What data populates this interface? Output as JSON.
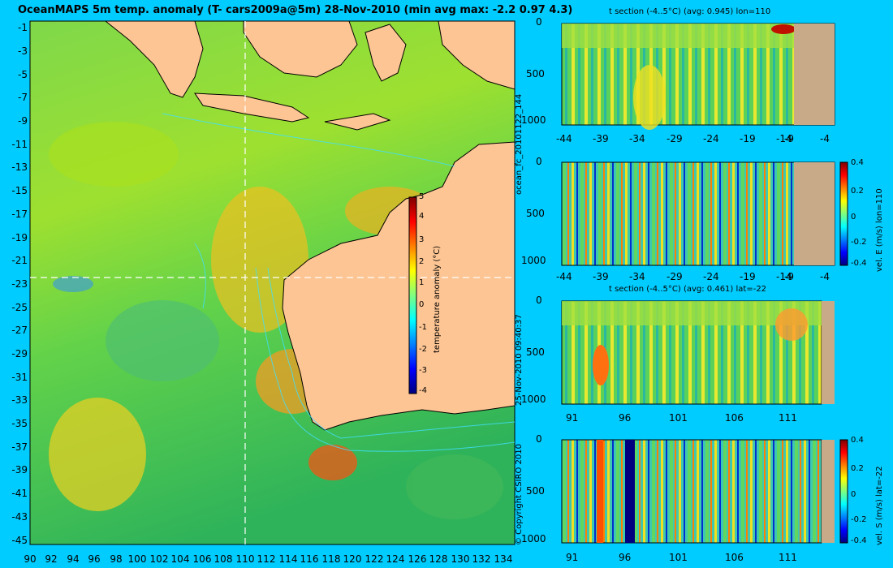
{
  "title": "OceanMAPS 5m temp. anomaly (T- cars2009a@5m) 28-Nov-2010 (min avg max: -2.2 0.97 4.3)",
  "colors": {
    "background": "#00ccff",
    "land": "#fdc593",
    "section_land": "#c8aa88",
    "contour": "#40e0ff",
    "crosshair": "#ffffff"
  },
  "side_labels": {
    "run_id": "ocean_fc_20101122_144",
    "timestamp": "25-Nov-2010 09:40:37",
    "copyright": "© Copyright CSIRO 2010"
  },
  "chart_data": [
    {
      "type": "heatmap",
      "title": "OceanMAPS 5m temp. anomaly (T- cars2009a@5m) 28-Nov-2010 (min avg max: -2.2 0.97 4.3)",
      "x_ticks": [
        "90",
        "92",
        "94",
        "96",
        "98",
        "100",
        "102",
        "104",
        "106",
        "108",
        "110",
        "112",
        "114",
        "116",
        "118",
        "120",
        "122",
        "124",
        "126",
        "128",
        "130",
        "132",
        "134"
      ],
      "y_ticks": [
        "-1",
        "-3",
        "-5",
        "-7",
        "-9",
        "-11",
        "-13",
        "-15",
        "-17",
        "-19",
        "-21",
        "-23",
        "-25",
        "-27",
        "-29",
        "-31",
        "-33",
        "-35",
        "-37",
        "-39",
        "-41",
        "-43",
        "-45"
      ],
      "xlim": [
        90,
        135
      ],
      "ylim": [
        -45,
        0
      ],
      "crosshair": {
        "lon": 110,
        "lat": -22
      },
      "colorbar": {
        "label": "temperature anomaly (°C)",
        "ticks": [
          "5",
          "4",
          "3",
          "2",
          "1",
          "0",
          "-1",
          "-2",
          "-3",
          "-4"
        ],
        "range": [
          -4,
          5
        ]
      },
      "stats": {
        "min": -2.2,
        "avg": 0.97,
        "max": 4.3
      }
    },
    {
      "type": "heatmap",
      "title": "t section (-4..5°C) (avg: 0.945) lon=110",
      "x_ticks": [
        "-44",
        "-39",
        "-34",
        "-29",
        "-24",
        "-19",
        "-14",
        "-9",
        "-4"
      ],
      "y_ticks": [
        "0",
        "500",
        "1000"
      ],
      "avg": 0.945
    },
    {
      "type": "heatmap",
      "title": "",
      "x_ticks": [
        "-44",
        "-39",
        "-34",
        "-29",
        "-24",
        "-19",
        "-14",
        "-9",
        "-4"
      ],
      "y_ticks": [
        "0",
        "500",
        "1000"
      ],
      "colorbar": {
        "label": "vel. E (m/s) lon=110",
        "ticks": [
          "0.4",
          "0.2",
          "0",
          "-0.2",
          "-0.4"
        ],
        "range": [
          -0.4,
          0.4
        ]
      }
    },
    {
      "type": "heatmap",
      "title": "t section (-4..5°C) (avg: 0.461) lat=-22",
      "x_ticks": [
        "91",
        "96",
        "101",
        "106",
        "111"
      ],
      "y_ticks": [
        "0",
        "500",
        "1000"
      ],
      "avg": 0.461
    },
    {
      "type": "heatmap",
      "title": "",
      "x_ticks": [
        "91",
        "96",
        "101",
        "106",
        "111"
      ],
      "y_ticks": [
        "0",
        "500",
        "1000"
      ],
      "colorbar": {
        "label": "vel. S (m/s) lat=-22",
        "ticks": [
          "0.4",
          "0.2",
          "0",
          "-0.2",
          "-0.4"
        ],
        "range": [
          -0.4,
          0.4
        ]
      }
    }
  ]
}
